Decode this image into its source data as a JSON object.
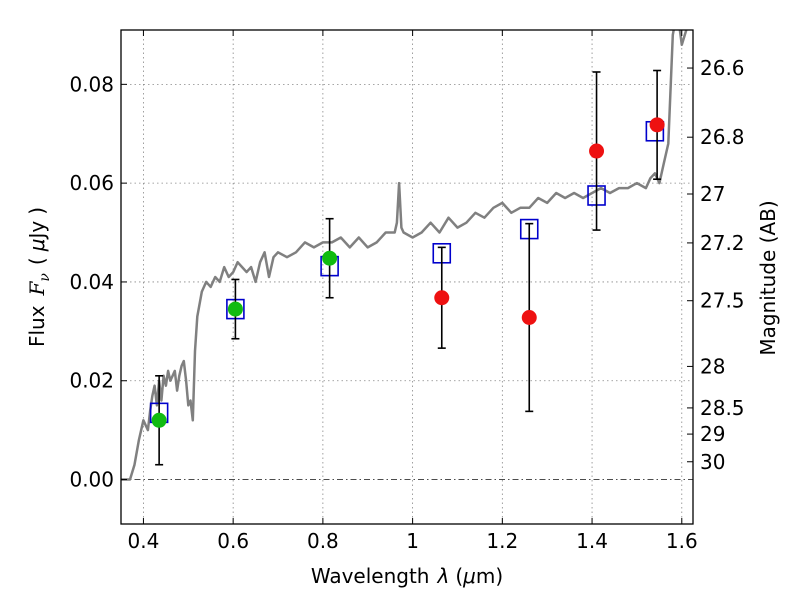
{
  "chart_data": {
    "type": "scatter",
    "title": "",
    "xlabel_parts": [
      "Wavelength",
      "λ",
      "(",
      "μ",
      "m)"
    ],
    "ylabel_parts": [
      "Flux",
      "F",
      "ν",
      "(",
      "μ",
      "Jy",
      ")"
    ],
    "y2label": "Magnitude (AB)",
    "xlim": [
      0.35,
      1.625
    ],
    "ylim": [
      -0.009,
      0.091
    ],
    "x_ticks": [
      0.4,
      0.6,
      0.8,
      1.0,
      1.2,
      1.4,
      1.6
    ],
    "x_tick_labels": [
      "0.4",
      "0.6",
      "0.8",
      "1",
      "1.2",
      "1.4",
      "1.6"
    ],
    "y_ticks": [
      0.0,
      0.02,
      0.04,
      0.06,
      0.08
    ],
    "y_tick_labels": [
      "0.00",
      "0.02",
      "0.04",
      "0.06",
      "0.08"
    ],
    "mag_ticks": [
      {
        "flux": 0.0833,
        "label": "26.6"
      },
      {
        "flux": 0.0693,
        "label": "26.8"
      },
      {
        "flux": 0.0578,
        "label": "27"
      },
      {
        "flux": 0.0479,
        "label": "27.2"
      },
      {
        "flux": 0.0362,
        "label": "27.5"
      },
      {
        "flux": 0.0229,
        "label": "28"
      },
      {
        "flux": 0.0145,
        "label": "28.5"
      },
      {
        "flux": 0.0092,
        "label": "29"
      },
      {
        "flux": 0.0036,
        "label": "30"
      }
    ],
    "grid": true,
    "zero_line": 0.0,
    "colors": {
      "template": "#808080",
      "model_box": "#0000cc",
      "green": "#11bb11",
      "red": "#ee1111",
      "errorbar": "#000000",
      "grid": "#888888"
    },
    "series": [
      {
        "kind": "template_line",
        "x": [
          0.35,
          0.37,
          0.38,
          0.39,
          0.4,
          0.41,
          0.415,
          0.42,
          0.425,
          0.43,
          0.435,
          0.44,
          0.445,
          0.45,
          0.455,
          0.46,
          0.465,
          0.47,
          0.475,
          0.48,
          0.485,
          0.49,
          0.495,
          0.5,
          0.505,
          0.51,
          0.515,
          0.52,
          0.53,
          0.54,
          0.55,
          0.56,
          0.57,
          0.58,
          0.59,
          0.6,
          0.61,
          0.62,
          0.63,
          0.64,
          0.65,
          0.66,
          0.67,
          0.68,
          0.69,
          0.7,
          0.72,
          0.74,
          0.76,
          0.78,
          0.8,
          0.82,
          0.84,
          0.86,
          0.88,
          0.9,
          0.92,
          0.94,
          0.96,
          0.965,
          0.97,
          0.975,
          0.98,
          1.0,
          1.02,
          1.04,
          1.06,
          1.08,
          1.1,
          1.12,
          1.14,
          1.16,
          1.18,
          1.2,
          1.22,
          1.24,
          1.26,
          1.28,
          1.3,
          1.32,
          1.34,
          1.36,
          1.38,
          1.4,
          1.42,
          1.44,
          1.46,
          1.48,
          1.5,
          1.52,
          1.53,
          1.54,
          1.55,
          1.56,
          1.57,
          1.58,
          1.59,
          1.6,
          1.61,
          1.62
        ],
        "values": [
          0.0,
          0.0,
          0.003,
          0.008,
          0.012,
          0.01,
          0.014,
          0.017,
          0.019,
          0.015,
          0.02,
          0.016,
          0.021,
          0.019,
          0.022,
          0.02,
          0.021,
          0.022,
          0.018,
          0.021,
          0.023,
          0.024,
          0.02,
          0.015,
          0.016,
          0.012,
          0.026,
          0.033,
          0.038,
          0.04,
          0.039,
          0.041,
          0.04,
          0.043,
          0.041,
          0.042,
          0.044,
          0.043,
          0.042,
          0.043,
          0.04,
          0.044,
          0.046,
          0.041,
          0.045,
          0.046,
          0.045,
          0.046,
          0.048,
          0.047,
          0.048,
          0.048,
          0.049,
          0.047,
          0.049,
          0.047,
          0.048,
          0.05,
          0.05,
          0.052,
          0.06,
          0.051,
          0.05,
          0.049,
          0.05,
          0.052,
          0.05,
          0.053,
          0.051,
          0.052,
          0.054,
          0.053,
          0.055,
          0.056,
          0.054,
          0.055,
          0.055,
          0.057,
          0.056,
          0.058,
          0.057,
          0.058,
          0.057,
          0.058,
          0.059,
          0.058,
          0.059,
          0.059,
          0.06,
          0.059,
          0.061,
          0.062,
          0.06,
          0.064,
          0.068,
          0.09,
          0.095,
          0.088,
          0.091,
          0.096
        ]
      },
      {
        "kind": "model_boxes",
        "x": [
          0.435,
          0.605,
          0.815,
          1.065,
          1.26,
          1.41,
          1.54
        ],
        "values": [
          0.0135,
          0.0345,
          0.0432,
          0.0458,
          0.0507,
          0.0575,
          0.0705
        ]
      },
      {
        "kind": "green_points",
        "x": [
          0.435,
          0.605,
          0.815
        ],
        "values": [
          0.012,
          0.0345,
          0.0448
        ],
        "yerr": [
          0.009,
          0.006,
          0.008
        ]
      },
      {
        "kind": "red_points",
        "x": [
          1.065,
          1.26,
          1.41,
          1.545
        ],
        "values": [
          0.0368,
          0.0328,
          0.0665,
          0.0718
        ],
        "yerr": [
          0.0102,
          0.019,
          0.016,
          0.011
        ]
      }
    ]
  }
}
